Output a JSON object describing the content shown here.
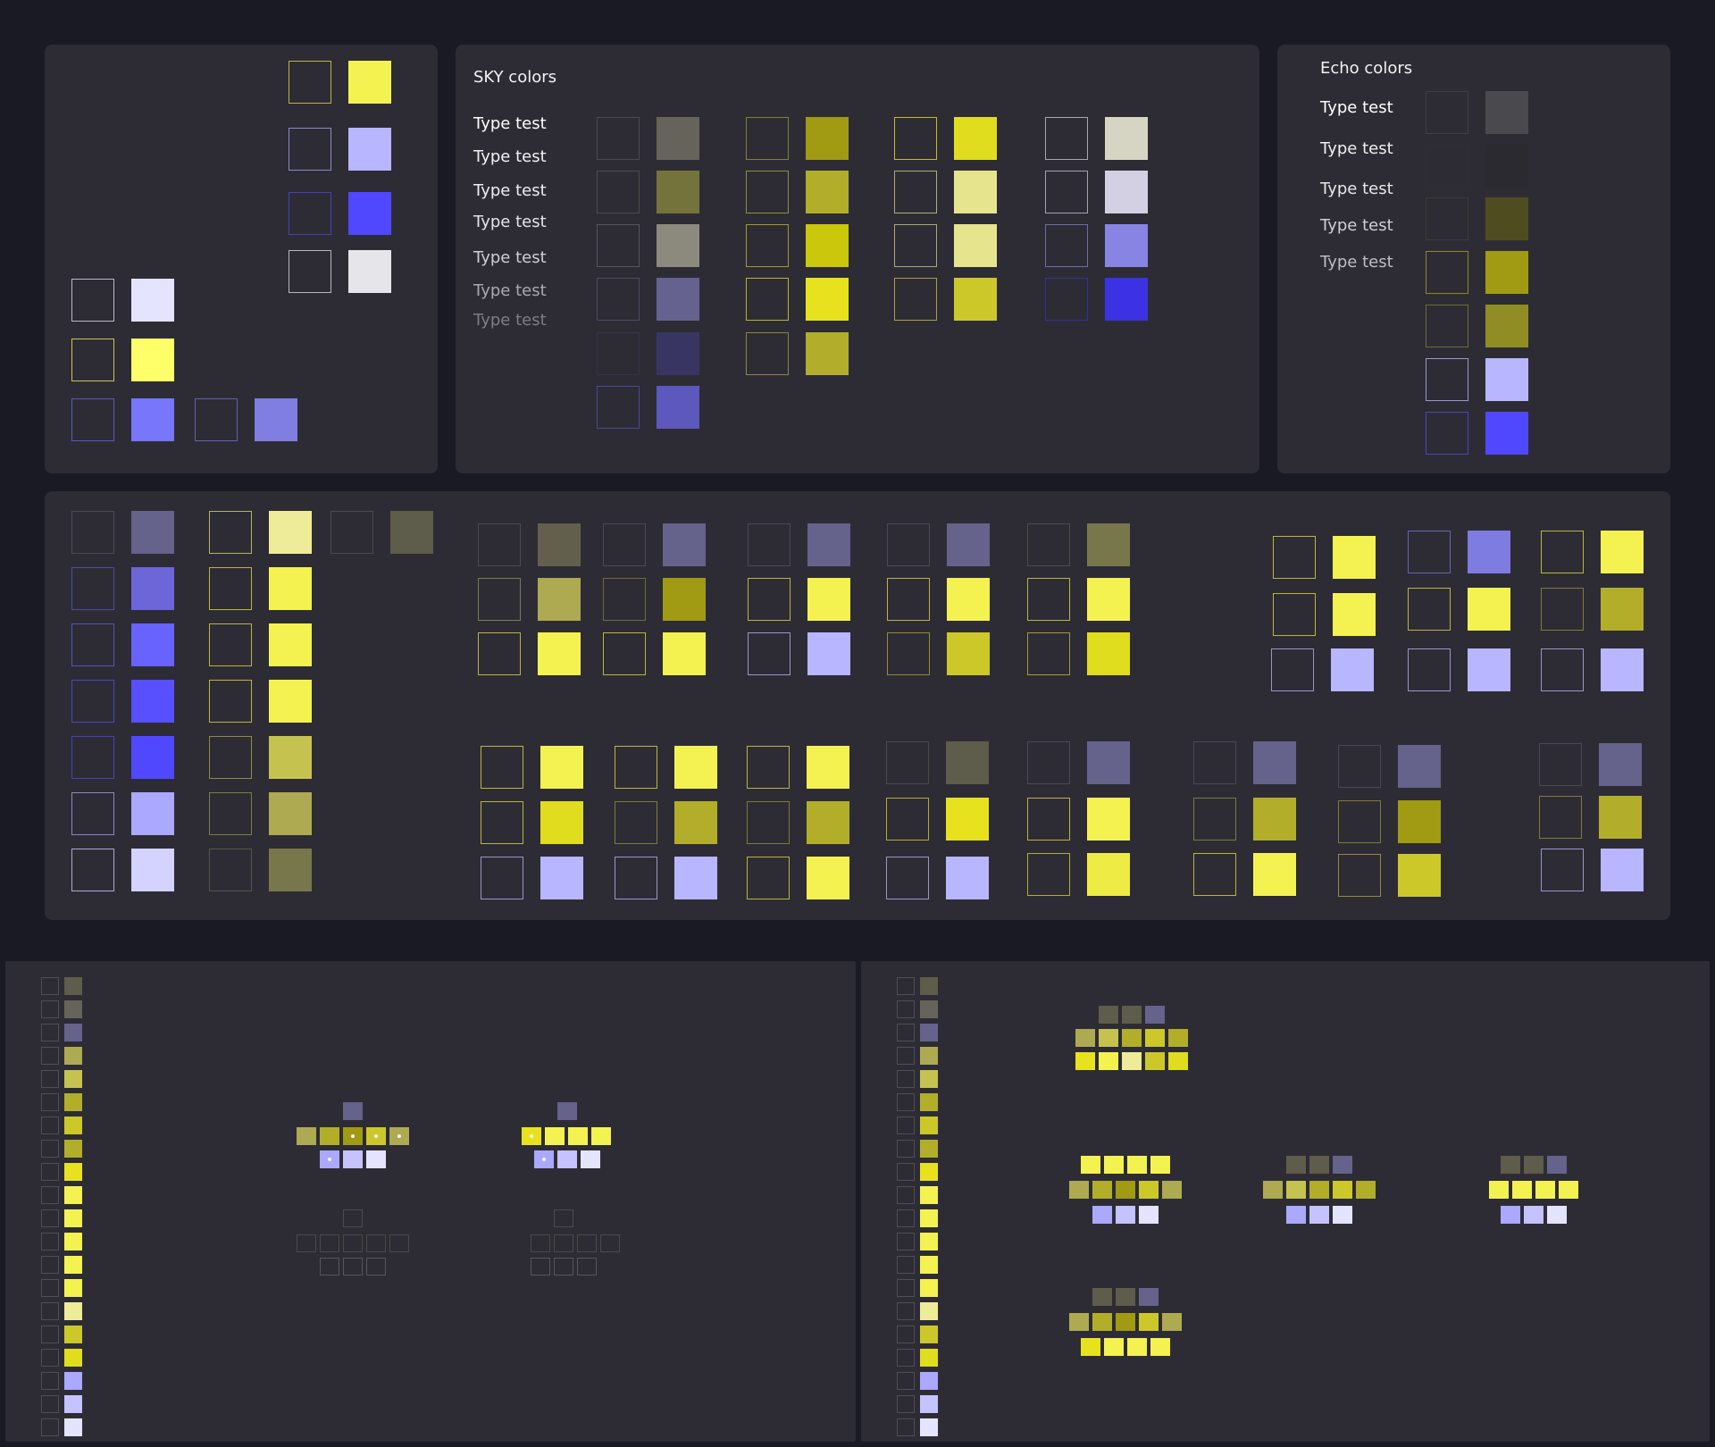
{
  "sky": {
    "title": "SKY colors",
    "type_tests": [
      {
        "label": "Type test",
        "color": "#ffffff"
      },
      {
        "label": "Type test",
        "color": "#f2f2f2"
      },
      {
        "label": "Type test",
        "color": "#eeeeee"
      },
      {
        "label": "Type test",
        "color": "#e4e4e4"
      },
      {
        "label": "Type test",
        "color": "#cfcfd3"
      },
      {
        "label": "Type test",
        "color": "#a9a9ad"
      },
      {
        "label": "Type test",
        "color": "#7d7d82"
      }
    ]
  },
  "echo": {
    "title": "Echo colors",
    "type_tests": [
      {
        "label": "Type test",
        "color": "#ffffff"
      },
      {
        "label": "Type test",
        "color": "#f0f0f0"
      },
      {
        "label": "Type test",
        "color": "#e8e8e8"
      },
      {
        "label": "Type test",
        "color": "#cfcfd3"
      },
      {
        "label": "Type test",
        "color": "#bdbdc2"
      }
    ]
  },
  "colors": {
    "bright_yellow": "#f4f250",
    "pale_yellow": "#ffff6a",
    "lavender": "#b8b6ff",
    "periwinkle": "#5048ff",
    "medium_purple": "#7876fb",
    "slate_purple": "#65628c",
    "olive_dark": "#5e5c4a",
    "olive": "#a09b12",
    "light_gray": "#e5e5ea",
    "ghost_white": "#e4e4ff"
  }
}
